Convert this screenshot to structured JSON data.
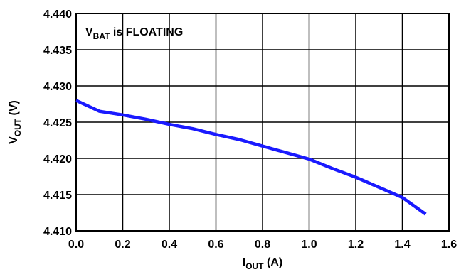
{
  "chart_data": {
    "type": "line",
    "title": "",
    "xlabel": {
      "main": "I",
      "sub": "OUT",
      "suffix": " (A)"
    },
    "ylabel": {
      "main": "V",
      "sub": "OUT",
      "suffix": " (V)"
    },
    "annotation": {
      "main": "V",
      "sub": "BAT",
      "suffix": " is FLOATING"
    },
    "xlim": [
      0.0,
      1.6
    ],
    "ylim": [
      4.41,
      4.44
    ],
    "x_ticks": [
      "0.0",
      "0.2",
      "0.4",
      "0.6",
      "0.8",
      "1.0",
      "1.2",
      "1.4",
      "1.6"
    ],
    "y_ticks": [
      "4.410",
      "4.415",
      "4.420",
      "4.425",
      "4.430",
      "4.435",
      "4.440"
    ],
    "grid": true,
    "line_color": "#1a1aff",
    "series": [
      {
        "x": [
          0.0,
          0.1,
          0.2,
          0.3,
          0.4,
          0.5,
          0.6,
          0.7,
          0.8,
          0.9,
          1.0,
          1.1,
          1.2,
          1.3,
          1.4,
          1.5
        ],
        "y": [
          4.428,
          4.4265,
          4.426,
          4.4254,
          4.4247,
          4.4241,
          4.4233,
          4.4226,
          4.4217,
          4.4208,
          4.4199,
          4.4186,
          4.4174,
          4.416,
          4.4146,
          4.4123
        ]
      }
    ]
  }
}
